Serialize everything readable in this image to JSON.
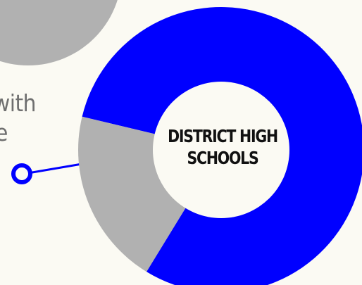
{
  "chart_data": {
    "type": "pie",
    "center_label": [
      "DISTRICT HIGH",
      "SCHOOLS"
    ],
    "slices": [
      {
        "value": 80,
        "color": "#0000ff"
      },
      {
        "value": 20,
        "color": "#b1b1b1"
      }
    ]
  },
  "side_text": [
    "with",
    "ve"
  ],
  "colors": {
    "background": "#fbfaf3",
    "accent": "#0000ff",
    "muted": "#b1b1b1",
    "text_gray": "#6f6f6f"
  }
}
